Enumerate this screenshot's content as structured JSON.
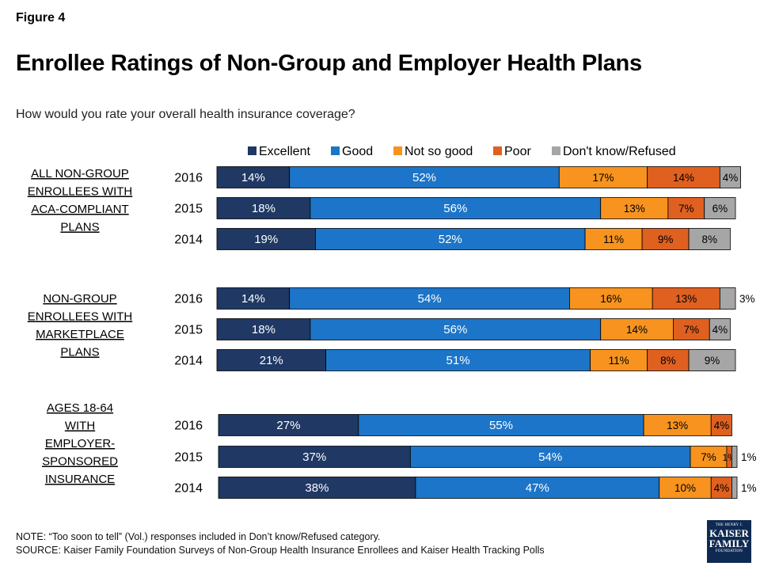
{
  "figure_label": "Figure 4",
  "title": "Enrollee Ratings of Non-Group and Employer Health Plans",
  "subtitle": "How would you rate your overall health insurance coverage?",
  "notes": {
    "note": "NOTE: “Too soon to tell” (Vol.) responses included in Don’t know/Refused category.",
    "source": "SOURCE: Kaiser Family Foundation Surveys of Non-Group Health Insurance Enrollees and Kaiser Health Tracking Polls"
  },
  "logo": {
    "line1": "THE HENRY J.",
    "line2": "KAISER",
    "line3": "FAMILY",
    "line4": "FOUNDATION"
  },
  "colors": {
    "Excellent": "#1f3864",
    "Good": "#1c75c8",
    "Not so good": "#f7931e",
    "Poor": "#e06020",
    "Don't know/Refused": "#a6a6a6"
  },
  "chart_data": {
    "type": "bar",
    "orientation": "horizontal",
    "stacked": true,
    "legend": [
      "Excellent",
      "Good",
      "Not so good",
      "Poor",
      "Don't know/Refused"
    ],
    "legend_position": "top",
    "xlim": [
      0,
      100
    ],
    "unit": "%",
    "groups": [
      {
        "label_lines": [
          "ALL NON-GROUP",
          "ENROLLEES WITH",
          "ACA-COMPLIANT",
          "PLANS"
        ],
        "rows": [
          {
            "year": "2016",
            "values": [
              14,
              52,
              17,
              14,
              4
            ]
          },
          {
            "year": "2015",
            "values": [
              18,
              56,
              13,
              7,
              6
            ]
          },
          {
            "year": "2014",
            "values": [
              19,
              52,
              11,
              9,
              8
            ]
          }
        ]
      },
      {
        "label_lines": [
          "NON-GROUP",
          "ENROLLEES WITH",
          "MARKETPLACE",
          "PLANS"
        ],
        "rows": [
          {
            "year": "2016",
            "values": [
              14,
              54,
              16,
              13,
              3
            ]
          },
          {
            "year": "2015",
            "values": [
              18,
              56,
              14,
              7,
              4
            ]
          },
          {
            "year": "2014",
            "values": [
              21,
              51,
              11,
              8,
              9
            ]
          }
        ]
      },
      {
        "label_lines": [
          "AGES 18-64",
          "WITH",
          "EMPLOYER-",
          "SPONSORED",
          "INSURANCE"
        ],
        "rows": [
          {
            "year": "2016",
            "values": [
              27,
              55,
              13,
              4,
              0
            ]
          },
          {
            "year": "2015",
            "values": [
              37,
              54,
              7,
              1,
              1
            ]
          },
          {
            "year": "2014",
            "values": [
              38,
              47,
              10,
              4,
              1
            ]
          }
        ]
      }
    ]
  }
}
